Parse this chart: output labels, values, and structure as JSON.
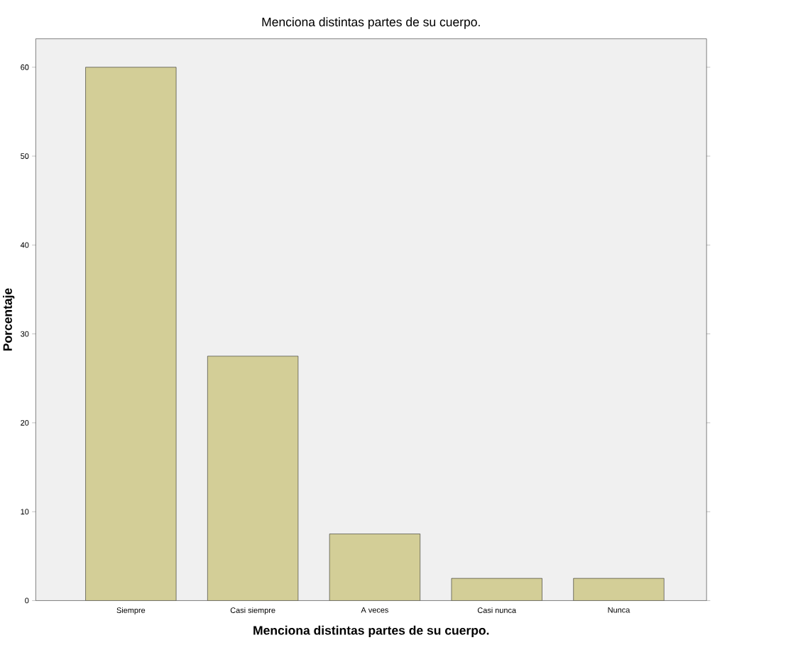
{
  "chart_data": {
    "type": "bar",
    "title": "Menciona distintas partes de su cuerpo.",
    "xlabel": "Menciona distintas partes de su cuerpo.",
    "ylabel": "Porcentaje",
    "categories": [
      "Siempre",
      "Casi siempre",
      "A veces",
      "Casi nunca",
      "Nunca"
    ],
    "values": [
      60,
      27.5,
      7.5,
      2.5,
      2.5
    ],
    "color": "#d3ce97",
    "ylim": [
      0,
      63.2
    ],
    "yticks": [
      0,
      10,
      20,
      30,
      40,
      50,
      60
    ]
  }
}
